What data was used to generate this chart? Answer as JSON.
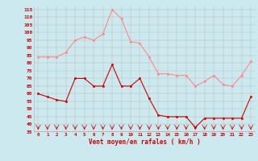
{
  "x": [
    0,
    1,
    2,
    3,
    4,
    5,
    6,
    7,
    8,
    9,
    10,
    11,
    12,
    13,
    14,
    15,
    16,
    17,
    18,
    19,
    20,
    21,
    22,
    23
  ],
  "wind_avg": [
    60,
    58,
    56,
    55,
    70,
    70,
    65,
    65,
    79,
    65,
    65,
    70,
    57,
    46,
    45,
    45,
    45,
    38,
    44,
    44,
    44,
    44,
    44,
    58
  ],
  "wind_gust": [
    84,
    84,
    84,
    87,
    95,
    97,
    95,
    99,
    115,
    109,
    94,
    93,
    84,
    73,
    73,
    72,
    72,
    65,
    68,
    72,
    66,
    65,
    72,
    81
  ],
  "ylim": [
    35,
    117
  ],
  "yticks": [
    35,
    40,
    45,
    50,
    55,
    60,
    65,
    70,
    75,
    80,
    85,
    90,
    95,
    100,
    105,
    110,
    115
  ],
  "xlabel": "Vent moyen/en rafales ( km/h )",
  "bg_color": "#cde9f0",
  "grid_color": "#b0b0b0",
  "avg_color": "#cc0000",
  "gust_color": "#ff8888",
  "label_color": "#cc0000",
  "line_bottom_color": "#cc0000"
}
